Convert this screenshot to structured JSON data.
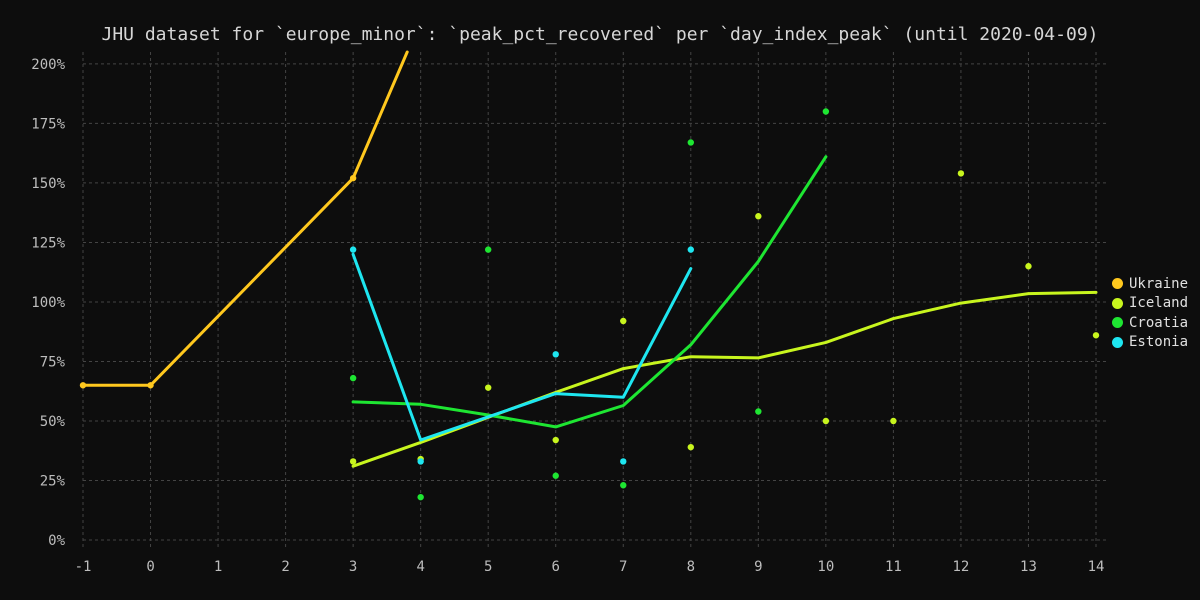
{
  "chart_data": {
    "type": "line",
    "title": "JHU dataset for `europe_minor`: `peak_pct_recovered` per `day_index_peak` (until 2020-04-09)",
    "xlabel": "",
    "ylabel": "",
    "xlim": [
      -1,
      14
    ],
    "ylim": [
      0,
      205
    ],
    "x_ticks": [
      -1,
      0,
      1,
      2,
      3,
      4,
      5,
      6,
      7,
      8,
      9,
      10,
      11,
      12,
      13,
      14
    ],
    "y_ticks": [
      0,
      25,
      50,
      75,
      100,
      125,
      150,
      175,
      200
    ],
    "y_tick_labels": [
      "0%",
      "25%",
      "50%",
      "75%",
      "100%",
      "125%",
      "150%",
      "175%",
      "200%"
    ],
    "grid": true,
    "legend_position": "right",
    "series": [
      {
        "name": "Ukraine",
        "color": "#ffc81e",
        "line": [
          [
            -1,
            65
          ],
          [
            0,
            65
          ],
          [
            3,
            152
          ],
          [
            3.8,
            205
          ]
        ],
        "points": [
          [
            -1,
            65
          ],
          [
            0,
            65
          ],
          [
            3,
            152
          ]
        ]
      },
      {
        "name": "Iceland",
        "color": "#c8f51e",
        "line": [
          [
            3,
            31
          ],
          [
            4,
            41
          ],
          [
            5,
            51.5
          ],
          [
            6,
            62
          ],
          [
            7,
            72
          ],
          [
            8,
            77
          ],
          [
            9,
            76.5
          ],
          [
            10,
            83
          ],
          [
            11,
            93
          ],
          [
            12,
            99.5
          ],
          [
            13,
            103.5
          ],
          [
            14,
            104
          ]
        ],
        "points": [
          [
            3,
            33
          ],
          [
            4,
            34
          ],
          [
            5,
            64
          ],
          [
            6,
            42
          ],
          [
            7,
            92
          ],
          [
            8,
            39
          ],
          [
            9,
            136
          ],
          [
            10,
            50
          ],
          [
            11,
            50
          ],
          [
            12,
            154
          ],
          [
            13,
            115
          ],
          [
            14,
            86
          ]
        ]
      },
      {
        "name": "Croatia",
        "color": "#1ee632",
        "line": [
          [
            3,
            58
          ],
          [
            4,
            57
          ],
          [
            5,
            52.5
          ],
          [
            6,
            47.5
          ],
          [
            7,
            56.5
          ],
          [
            8,
            82
          ],
          [
            9,
            117
          ],
          [
            10,
            161
          ]
        ],
        "points": [
          [
            3,
            68
          ],
          [
            4,
            18
          ],
          [
            5,
            122
          ],
          [
            6,
            27
          ],
          [
            7,
            23
          ],
          [
            8,
            167
          ],
          [
            9,
            54
          ],
          [
            10,
            180
          ]
        ]
      },
      {
        "name": "Estonia",
        "color": "#1ee6f0",
        "line": [
          [
            3,
            120
          ],
          [
            4,
            42
          ],
          [
            6,
            61.5
          ],
          [
            7,
            60
          ],
          [
            8,
            114
          ]
        ],
        "points": [
          [
            3,
            122
          ],
          [
            4,
            33
          ],
          [
            6,
            78
          ],
          [
            7,
            33
          ],
          [
            8,
            122
          ]
        ]
      }
    ]
  }
}
